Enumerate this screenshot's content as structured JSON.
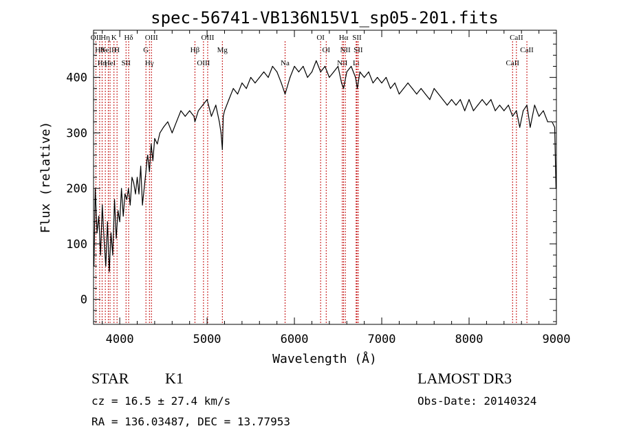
{
  "chart_data": {
    "type": "line",
    "title": "spec-56741-VB136N15V1_sp05-201.fits",
    "xlabel": "Wavelength (Å)",
    "ylabel": "Flux (relative)",
    "xlim": [
      3700,
      9000
    ],
    "ylim": [
      -45,
      485
    ],
    "xticks": [
      4000,
      5000,
      6000,
      7000,
      8000,
      9000
    ],
    "xtick_labels": [
      "4000",
      "5000",
      "6000",
      "7000",
      "8000",
      "9000"
    ],
    "yticks": [
      0,
      100,
      200,
      300,
      400
    ],
    "ytick_labels": [
      "0",
      "100",
      "200",
      "300",
      "400"
    ],
    "grid": false,
    "series": [
      {
        "name": "flux",
        "x": [
          3705,
          3720,
          3740,
          3760,
          3780,
          3800,
          3820,
          3840,
          3860,
          3880,
          3900,
          3920,
          3940,
          3960,
          3980,
          4000,
          4020,
          4040,
          4060,
          4080,
          4100,
          4120,
          4140,
          4160,
          4180,
          4200,
          4220,
          4240,
          4260,
          4280,
          4300,
          4310,
          4320,
          4340,
          4360,
          4380,
          4400,
          4430,
          4460,
          4500,
          4550,
          4600,
          4650,
          4700,
          4750,
          4800,
          4850,
          4861,
          4900,
          4950,
          5000,
          5050,
          5100,
          5140,
          5160,
          5175,
          5185,
          5200,
          5250,
          5300,
          5350,
          5400,
          5450,
          5500,
          5550,
          5600,
          5650,
          5700,
          5750,
          5800,
          5850,
          5893,
          5950,
          6000,
          6050,
          6100,
          6150,
          6200,
          6250,
          6300,
          6350,
          6400,
          6450,
          6500,
          6540,
          6563,
          6600,
          6650,
          6700,
          6720,
          6750,
          6800,
          6850,
          6900,
          6950,
          7000,
          7050,
          7100,
          7150,
          7200,
          7250,
          7300,
          7350,
          7400,
          7450,
          7500,
          7550,
          7600,
          7650,
          7700,
          7750,
          7800,
          7850,
          7900,
          7950,
          8000,
          8050,
          8100,
          8150,
          8200,
          8250,
          8300,
          8350,
          8400,
          8450,
          8498,
          8542,
          8580,
          8620,
          8662,
          8700,
          8750,
          8800,
          8850,
          8900,
          8950,
          8980,
          8995
        ],
        "values": [
          60,
          200,
          120,
          150,
          80,
          170,
          110,
          60,
          140,
          50,
          120,
          80,
          180,
          110,
          160,
          140,
          200,
          150,
          190,
          180,
          200,
          170,
          220,
          210,
          190,
          220,
          190,
          240,
          170,
          200,
          230,
          250,
          260,
          230,
          280,
          250,
          290,
          280,
          300,
          310,
          320,
          300,
          320,
          340,
          330,
          340,
          330,
          320,
          340,
          350,
          360,
          330,
          350,
          320,
          300,
          270,
          330,
          340,
          360,
          380,
          370,
          390,
          380,
          400,
          390,
          400,
          410,
          400,
          420,
          410,
          390,
          370,
          400,
          420,
          410,
          420,
          400,
          410,
          430,
          410,
          420,
          400,
          410,
          420,
          390,
          380,
          410,
          420,
          400,
          380,
          410,
          400,
          410,
          390,
          400,
          390,
          400,
          380,
          390,
          370,
          380,
          390,
          380,
          370,
          380,
          370,
          360,
          380,
          370,
          360,
          350,
          360,
          350,
          360,
          340,
          360,
          340,
          350,
          360,
          350,
          360,
          340,
          350,
          340,
          350,
          330,
          340,
          310,
          340,
          350,
          310,
          350,
          330,
          340,
          320,
          320,
          310,
          200
        ]
      }
    ],
    "lines": [
      {
        "x": 3727,
        "label": "OII"
      },
      {
        "x": 3770,
        "label": "Hθ"
      },
      {
        "x": 3798,
        "label": "Hη"
      },
      {
        "x": 3835,
        "label": "Hη"
      },
      {
        "x": 3869,
        "label": "NeIII"
      },
      {
        "x": 3889,
        "label": "HeI"
      },
      {
        "x": 3934,
        "label": "K"
      },
      {
        "x": 3969,
        "label": "H"
      },
      {
        "x": 4072,
        "label": "SII"
      },
      {
        "x": 4102,
        "label": "Hδ"
      },
      {
        "x": 4300,
        "label": "G"
      },
      {
        "x": 4340,
        "label": "Hγ"
      },
      {
        "x": 4363,
        "label": "OIII"
      },
      {
        "x": 4861,
        "label": "Hβ"
      },
      {
        "x": 4959,
        "label": "OIII"
      },
      {
        "x": 5007,
        "label": "OIII"
      },
      {
        "x": 5175,
        "label": "Mg"
      },
      {
        "x": 5893,
        "label": "Na"
      },
      {
        "x": 6300,
        "label": "OI"
      },
      {
        "x": 6364,
        "label": "OI"
      },
      {
        "x": 6548,
        "label": "NII"
      },
      {
        "x": 6563,
        "label": "Hα"
      },
      {
        "x": 6583,
        "label": "NII"
      },
      {
        "x": 6707,
        "label": "Li"
      },
      {
        "x": 6716,
        "label": "SII"
      },
      {
        "x": 6731,
        "label": "SII"
      },
      {
        "x": 8498,
        "label": "CaII"
      },
      {
        "x": 8542,
        "label": "CaII"
      },
      {
        "x": 8662,
        "label": "CaII"
      }
    ]
  },
  "footer": {
    "class": "STAR",
    "subclass": "K1",
    "survey": "LAMOST DR3",
    "cz": "cz = 16.5 ± 27.4 km/s",
    "obs_date": "Obs-Date: 20140324",
    "radec": "RA = 136.03487, DEC =  13.77953"
  },
  "colors": {
    "line": "#000000",
    "marker": "#c00000",
    "background": "#ffffff"
  }
}
